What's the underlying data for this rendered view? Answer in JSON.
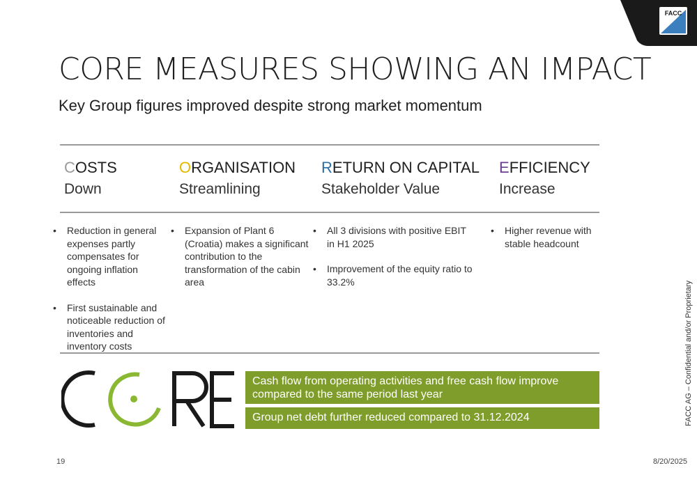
{
  "corner_logo": {
    "text": "FACC",
    "icon": "facc-logo-icon"
  },
  "title": "CORE MEASURES SHOWING AN IMPACT",
  "subtitle": "Key Group figures improved despite strong market momentum",
  "columns": [
    {
      "first_letter": "C",
      "rest": "OSTS",
      "sub": "Down",
      "color": "#9a9a9a",
      "bullets": [
        "Reduction in general expenses partly compensates for ongoing inflation effects",
        "First sustainable and noticeable reduction of inventories and inventory costs"
      ]
    },
    {
      "first_letter": "O",
      "rest": "RGANISATION",
      "sub": "Streamlining",
      "color": "#e6b800",
      "bullets": [
        "Expansion of Plant 6 (Croatia) makes a significant contribution to the transformation of the cabin area"
      ]
    },
    {
      "first_letter": "R",
      "rest": "ETURN ON CAPITAL",
      "sub": "Stakeholder Value",
      "color": "#2a6fa8",
      "bullets": [
        "All 3 divisions with positive EBIT in H1 2025",
        "Improvement of the equity ratio to 33.2%"
      ]
    },
    {
      "first_letter": "E",
      "rest": "FFICIENCY",
      "sub": "Increase",
      "color": "#6a3d8f",
      "bullets": [
        "Higher revenue with stable headcount"
      ]
    }
  ],
  "core_logo": {
    "text": "CORE",
    "accent_color": "#8ab833",
    "icon": "core-logo-icon"
  },
  "highlights": [
    "Cash flow from operating activities and free cash flow improve compared to the same period last year",
    "Group net debt further reduced compared to 31.12.2024"
  ],
  "highlight_color": "#7f9d2a",
  "side_note": "FACC AG – Confidential and/or Proprietary",
  "page_number": "19",
  "date": "8/20/2025"
}
